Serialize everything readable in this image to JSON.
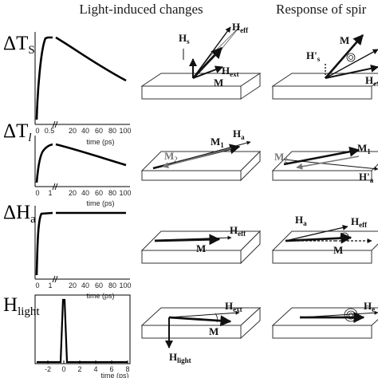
{
  "headers": {
    "left": "Light-induced changes",
    "right": "Response of spir"
  },
  "rows": [
    {
      "label_main": "ΔT",
      "label_sub": "S",
      "x_ticks": [
        "0",
        "0.5",
        "20",
        "40",
        "60",
        "80",
        "100"
      ],
      "x_label": "time (ps)",
      "mid_labels": [
        "H",
        "eff",
        "s",
        "M",
        "ext"
      ],
      "right_labels": [
        "M",
        "H'",
        "s",
        "H",
        "eff",
        "ext"
      ]
    },
    {
      "label_main": "ΔT",
      "label_sub": "l",
      "x_ticks": [
        "0",
        "1",
        "20",
        "40",
        "60",
        "80",
        "100"
      ],
      "x_label": "time (ps)",
      "mid_labels": [
        "M",
        "1",
        "H",
        "a",
        "M",
        "2"
      ],
      "right_labels": [
        "M",
        "1",
        "M",
        "2",
        "H'",
        "a"
      ]
    },
    {
      "label_main": "ΔH",
      "label_sub": "a",
      "x_ticks": [
        "0",
        "1",
        "20",
        "40",
        "60",
        "80",
        "100"
      ],
      "x_label": "time (ps)",
      "mid_labels": [
        "H",
        "eff",
        "M"
      ],
      "right_labels": [
        "H",
        "a",
        "H",
        "eff",
        "M"
      ]
    },
    {
      "label_main": "H",
      "label_sub": "light",
      "x_ticks": [
        "-2",
        "0",
        "2",
        "4",
        "6",
        "8"
      ],
      "x_label": "time (ps)",
      "mid_labels": [
        "H",
        "ext",
        "M",
        "H",
        "light"
      ],
      "right_labels": [
        "H",
        "e"
      ]
    }
  ]
}
